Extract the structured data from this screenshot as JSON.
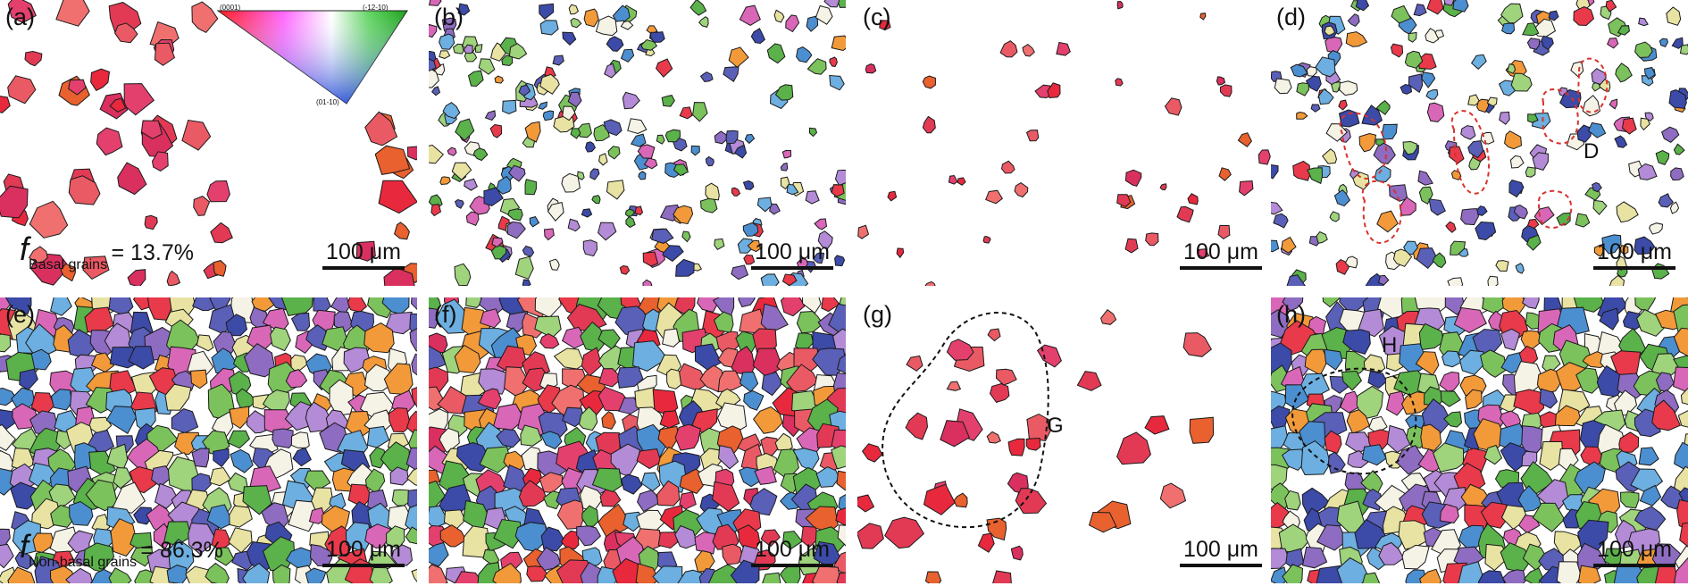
{
  "panels": [
    {
      "label": "(a)",
      "scale_text": "100 μm",
      "fraction": {
        "symbol": "f",
        "subscript": "Basal grains",
        "value": "= 13.7%"
      },
      "ipf_labels": [
        "(0001)",
        "(-12-10)",
        "(01-10)"
      ]
    },
    {
      "label": "(b)",
      "scale_text": "100 μm"
    },
    {
      "label": "(c)",
      "scale_text": "100 μm"
    },
    {
      "label": "(d)",
      "scale_text": "100 μm",
      "annotation": "D"
    },
    {
      "label": "(e)",
      "scale_text": "100 μm",
      "fraction": {
        "symbol": "f",
        "subscript": "Non-basal grains",
        "value": "= 86.3%"
      }
    },
    {
      "label": "(f)",
      "scale_text": "100 μm"
    },
    {
      "label": "(g)",
      "scale_text": "100 μm",
      "annotation": "G"
    },
    {
      "label": "(h)",
      "scale_text": "100 μm",
      "annotation": "H"
    }
  ],
  "colors": {
    "basal": [
      "#e8293d",
      "#e23a55",
      "#d9305f",
      "#ea5a64",
      "#e4406e",
      "#f07070",
      "#e8612e"
    ],
    "nonbasal": [
      "#5bb14a",
      "#7cc25c",
      "#3c4aa8",
      "#5a5fb8",
      "#6dafe0",
      "#f29a3a",
      "#b38bd6",
      "#e8e3a2",
      "#f5f2e6",
      "#d967b8",
      "#8d6cc1",
      "#9fd37c",
      "#4c8fd0",
      "#e83a4a"
    ],
    "boundary": "#1a1a1a",
    "dashed_red": "#d8322c",
    "dashed_black": "#111111"
  }
}
